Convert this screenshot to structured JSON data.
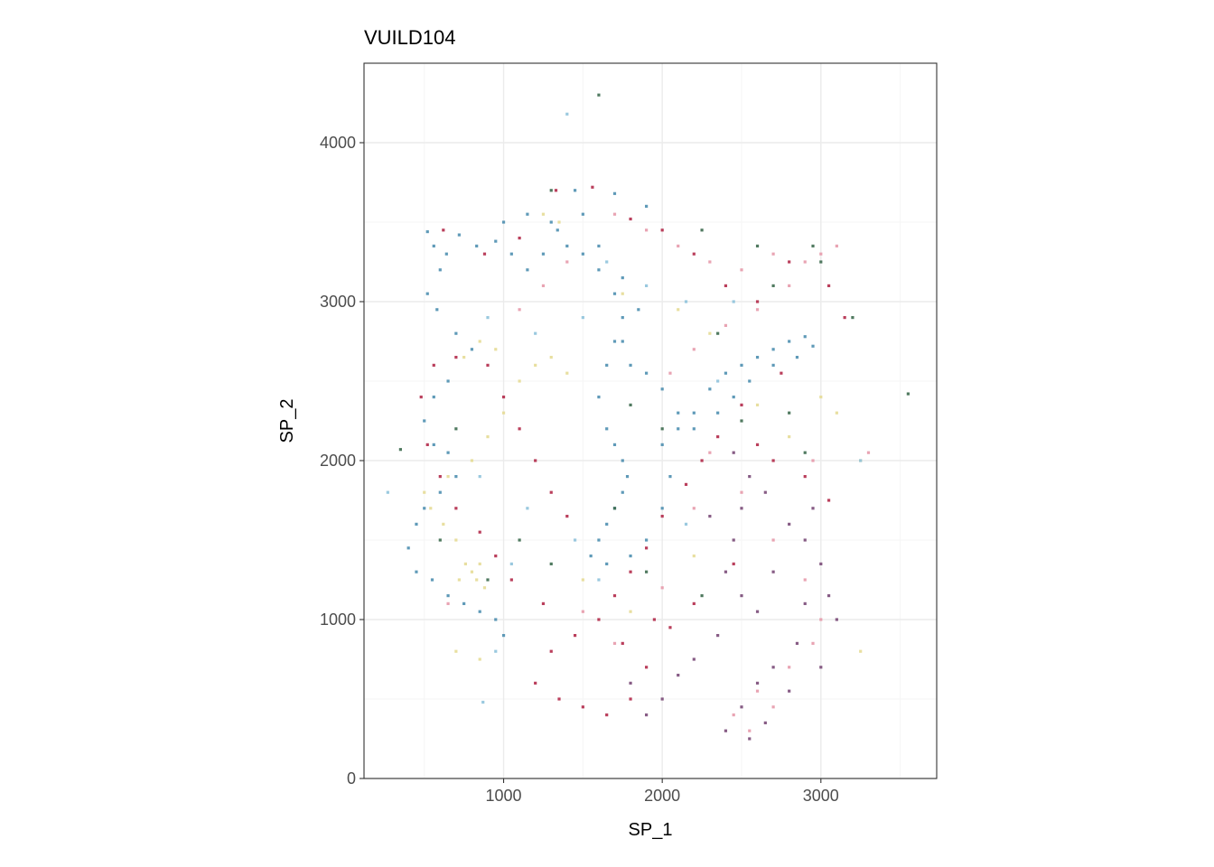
{
  "chart_data": {
    "type": "scatter",
    "title": "VUILD104",
    "xlabel": "SP_1",
    "ylabel": "SP_2",
    "xlim": [
      120,
      3730
    ],
    "ylim": [
      0,
      4500
    ],
    "x_ticks": [
      1000,
      2000,
      3000
    ],
    "x_tick_labels": [
      "1000",
      "2000",
      "3000"
    ],
    "y_ticks": [
      0,
      1000,
      2000,
      3000,
      4000
    ],
    "y_tick_labels": [
      "0",
      "1000",
      "2000",
      "3000",
      "4000"
    ],
    "grid": true,
    "legend": "none",
    "colors": {
      "panel_border": "#333333",
      "grid_major": "#ebebeb",
      "grid_minor": "#f5f5f5",
      "tick": "#333333",
      "steel_blue": "#4e8fb0",
      "crimson": "#b22a4a",
      "pale_yellow": "#e6dc96",
      "pink": "#e79aab",
      "plum": "#7a4a78",
      "dark_green": "#3d6b4f",
      "light_blue": "#8fc3dc"
    },
    "regions": [
      {
        "color": "steel_blue",
        "points": [
          [
            520,
            3440
          ],
          [
            560,
            3350
          ],
          [
            640,
            3300
          ],
          [
            720,
            3420
          ],
          [
            830,
            3350
          ],
          [
            950,
            3380
          ],
          [
            1050,
            3300
          ],
          [
            1150,
            3200
          ],
          [
            1250,
            3300
          ],
          [
            1340,
            3450
          ],
          [
            1400,
            3350
          ],
          [
            1500,
            3300
          ],
          [
            1600,
            3200
          ],
          [
            1700,
            3050
          ],
          [
            1750,
            2900
          ],
          [
            1700,
            2750
          ],
          [
            1650,
            2600
          ],
          [
            1600,
            2400
          ],
          [
            1650,
            2200
          ],
          [
            1700,
            2100
          ],
          [
            1750,
            2000
          ],
          [
            1780,
            1900
          ],
          [
            1750,
            1800
          ],
          [
            1700,
            1700
          ],
          [
            1650,
            1600
          ],
          [
            1600,
            1500
          ],
          [
            1550,
            1400
          ],
          [
            1650,
            1350
          ],
          [
            1800,
            1400
          ],
          [
            1900,
            1500
          ],
          [
            2000,
            1700
          ],
          [
            2050,
            1900
          ],
          [
            2000,
            2100
          ],
          [
            2100,
            2200
          ],
          [
            2200,
            2300
          ],
          [
            2300,
            2450
          ],
          [
            2400,
            2550
          ],
          [
            2500,
            2600
          ],
          [
            2600,
            2650
          ],
          [
            2700,
            2700
          ],
          [
            2800,
            2750
          ],
          [
            2900,
            2780
          ],
          [
            2950,
            2720
          ],
          [
            2850,
            2650
          ],
          [
            2700,
            2600
          ],
          [
            2550,
            2500
          ],
          [
            2450,
            2400
          ],
          [
            2350,
            2300
          ],
          [
            2200,
            2200
          ],
          [
            2100,
            2300
          ],
          [
            2000,
            2450
          ],
          [
            1900,
            2550
          ],
          [
            1800,
            2600
          ],
          [
            1750,
            2750
          ],
          [
            1850,
            2950
          ],
          [
            1750,
            3150
          ],
          [
            1600,
            3350
          ],
          [
            1500,
            3550
          ],
          [
            1450,
            3700
          ],
          [
            1700,
            3680
          ],
          [
            1900,
            3600
          ],
          [
            1300,
            3500
          ],
          [
            1150,
            3550
          ],
          [
            1000,
            3500
          ],
          [
            600,
            3200
          ],
          [
            520,
            3050
          ],
          [
            580,
            2950
          ],
          [
            700,
            2800
          ],
          [
            800,
            2700
          ],
          [
            650,
            2500
          ],
          [
            560,
            2400
          ],
          [
            500,
            2250
          ],
          [
            560,
            2100
          ],
          [
            650,
            2050
          ],
          [
            700,
            1900
          ],
          [
            600,
            1800
          ],
          [
            500,
            1700
          ],
          [
            450,
            1600
          ],
          [
            400,
            1450
          ],
          [
            450,
            1300
          ],
          [
            550,
            1250
          ],
          [
            650,
            1150
          ],
          [
            750,
            1100
          ],
          [
            850,
            1050
          ],
          [
            950,
            1000
          ],
          [
            1000,
            900
          ]
        ]
      },
      {
        "color": "crimson",
        "points": [
          [
            620,
            3450
          ],
          [
            880,
            3300
          ],
          [
            1100,
            3400
          ],
          [
            1330,
            3700
          ],
          [
            1560,
            3720
          ],
          [
            1800,
            3520
          ],
          [
            2000,
            3450
          ],
          [
            2200,
            3300
          ],
          [
            2400,
            3100
          ],
          [
            2600,
            3000
          ],
          [
            2800,
            3250
          ],
          [
            3050,
            3100
          ],
          [
            3150,
            2900
          ],
          [
            2750,
            2550
          ],
          [
            2500,
            2350
          ],
          [
            2350,
            2150
          ],
          [
            2250,
            2000
          ],
          [
            2150,
            1850
          ],
          [
            2000,
            1650
          ],
          [
            1900,
            1450
          ],
          [
            1800,
            1300
          ],
          [
            1700,
            1150
          ],
          [
            1600,
            1000
          ],
          [
            1450,
            900
          ],
          [
            1300,
            800
          ],
          [
            1200,
            600
          ],
          [
            1350,
            500
          ],
          [
            1500,
            450
          ],
          [
            1650,
            400
          ],
          [
            1800,
            500
          ],
          [
            1900,
            700
          ],
          [
            1750,
            850
          ],
          [
            1250,
            1100
          ],
          [
            1050,
            1250
          ],
          [
            950,
            1400
          ],
          [
            850,
            1550
          ],
          [
            700,
            1700
          ],
          [
            600,
            1900
          ],
          [
            520,
            2100
          ],
          [
            480,
            2400
          ],
          [
            560,
            2600
          ],
          [
            700,
            2650
          ],
          [
            900,
            2600
          ],
          [
            1000,
            2400
          ],
          [
            1100,
            2200
          ],
          [
            1200,
            2000
          ],
          [
            1300,
            1800
          ],
          [
            1400,
            1650
          ],
          [
            2600,
            2100
          ],
          [
            2700,
            2000
          ],
          [
            2900,
            1900
          ],
          [
            3050,
            1750
          ],
          [
            2450,
            1350
          ],
          [
            2200,
            1100
          ],
          [
            2050,
            950
          ],
          [
            1950,
            1000
          ]
        ]
      },
      {
        "color": "pale_yellow",
        "points": [
          [
            800,
            1300
          ],
          [
            830,
            1250
          ],
          [
            850,
            1350
          ],
          [
            760,
            1350
          ],
          [
            880,
            1200
          ],
          [
            720,
            1250
          ],
          [
            700,
            1500
          ],
          [
            620,
            1600
          ],
          [
            540,
            1700
          ],
          [
            500,
            1800
          ],
          [
            650,
            1900
          ],
          [
            800,
            2000
          ],
          [
            900,
            2150
          ],
          [
            1000,
            2300
          ],
          [
            1100,
            2500
          ],
          [
            1200,
            2600
          ],
          [
            1300,
            2650
          ],
          [
            1400,
            2550
          ],
          [
            950,
            2700
          ],
          [
            850,
            2750
          ],
          [
            750,
            2650
          ],
          [
            1250,
            3550
          ],
          [
            1350,
            3500
          ],
          [
            1750,
            3050
          ],
          [
            2100,
            2950
          ],
          [
            2300,
            2800
          ],
          [
            2600,
            2350
          ],
          [
            2800,
            2150
          ],
          [
            3000,
            2400
          ],
          [
            3100,
            2300
          ],
          [
            3250,
            2000
          ],
          [
            3250,
            800
          ],
          [
            850,
            750
          ],
          [
            700,
            800
          ],
          [
            1500,
            1250
          ],
          [
            1800,
            1050
          ],
          [
            2200,
            1400
          ]
        ]
      },
      {
        "color": "pink",
        "points": [
          [
            1700,
            3550
          ],
          [
            1900,
            3450
          ],
          [
            2100,
            3350
          ],
          [
            2300,
            3250
          ],
          [
            2500,
            3200
          ],
          [
            2700,
            3300
          ],
          [
            2900,
            3250
          ],
          [
            3000,
            3300
          ],
          [
            3100,
            3350
          ],
          [
            2800,
            3100
          ],
          [
            2600,
            2950
          ],
          [
            2400,
            2850
          ],
          [
            2200,
            2700
          ],
          [
            2050,
            2550
          ],
          [
            2300,
            2050
          ],
          [
            2500,
            1800
          ],
          [
            2700,
            1500
          ],
          [
            2900,
            1250
          ],
          [
            3000,
            1000
          ],
          [
            2950,
            850
          ],
          [
            2800,
            700
          ],
          [
            2600,
            550
          ],
          [
            2450,
            400
          ],
          [
            2550,
            300
          ],
          [
            2700,
            450
          ],
          [
            1400,
            3250
          ],
          [
            1250,
            3100
          ],
          [
            1100,
            2950
          ],
          [
            650,
            1100
          ],
          [
            1500,
            1050
          ],
          [
            1700,
            850
          ],
          [
            2000,
            1200
          ],
          [
            2200,
            1700
          ],
          [
            2950,
            2000
          ],
          [
            3300,
            2050
          ]
        ]
      },
      {
        "color": "plum",
        "points": [
          [
            2450,
            2050
          ],
          [
            2550,
            1900
          ],
          [
            2500,
            1700
          ],
          [
            2450,
            1500
          ],
          [
            2400,
            1300
          ],
          [
            2500,
            1150
          ],
          [
            2600,
            1050
          ],
          [
            2700,
            1300
          ],
          [
            2800,
            1600
          ],
          [
            2900,
            1500
          ],
          [
            3000,
            1350
          ],
          [
            3050,
            1150
          ],
          [
            3100,
            1000
          ],
          [
            2900,
            1100
          ],
          [
            2850,
            850
          ],
          [
            2700,
            700
          ],
          [
            2600,
            600
          ],
          [
            2500,
            450
          ],
          [
            2400,
            300
          ],
          [
            2550,
            250
          ],
          [
            2650,
            350
          ],
          [
            2800,
            550
          ],
          [
            3000,
            700
          ],
          [
            2350,
            900
          ],
          [
            2200,
            750
          ],
          [
            2100,
            650
          ],
          [
            2000,
            500
          ],
          [
            1900,
            400
          ],
          [
            1800,
            600
          ],
          [
            2300,
            1650
          ],
          [
            2650,
            1800
          ],
          [
            2950,
            1700
          ]
        ]
      },
      {
        "color": "dark_green",
        "points": [
          [
            1600,
            4300
          ],
          [
            1300,
            3700
          ],
          [
            2250,
            3450
          ],
          [
            2600,
            3350
          ],
          [
            3000,
            3250
          ],
          [
            2950,
            3350
          ],
          [
            2700,
            3100
          ],
          [
            2350,
            2800
          ],
          [
            3200,
            2900
          ],
          [
            3550,
            2420
          ],
          [
            2800,
            2300
          ],
          [
            2500,
            2250
          ],
          [
            2000,
            2200
          ],
          [
            1800,
            2350
          ],
          [
            2900,
            2050
          ],
          [
            350,
            2070
          ],
          [
            900,
            1250
          ],
          [
            1100,
            1500
          ],
          [
            1300,
            1350
          ],
          [
            1900,
            1300
          ],
          [
            2250,
            1150
          ],
          [
            1700,
            1700
          ],
          [
            600,
            1500
          ],
          [
            700,
            2200
          ]
        ]
      },
      {
        "color": "light_blue",
        "points": [
          [
            270,
            1800
          ],
          [
            1400,
            4180
          ],
          [
            1650,
            3250
          ],
          [
            1500,
            2900
          ],
          [
            1900,
            3100
          ],
          [
            2150,
            3000
          ],
          [
            2450,
            3000
          ],
          [
            1200,
            2800
          ],
          [
            900,
            2900
          ],
          [
            850,
            1900
          ],
          [
            1150,
            1700
          ],
          [
            1050,
            1350
          ],
          [
            1450,
            1500
          ],
          [
            1600,
            1250
          ],
          [
            2150,
            1600
          ],
          [
            3250,
            2000
          ],
          [
            950,
            800
          ],
          [
            870,
            480
          ],
          [
            2350,
            2500
          ]
        ]
      }
    ]
  }
}
